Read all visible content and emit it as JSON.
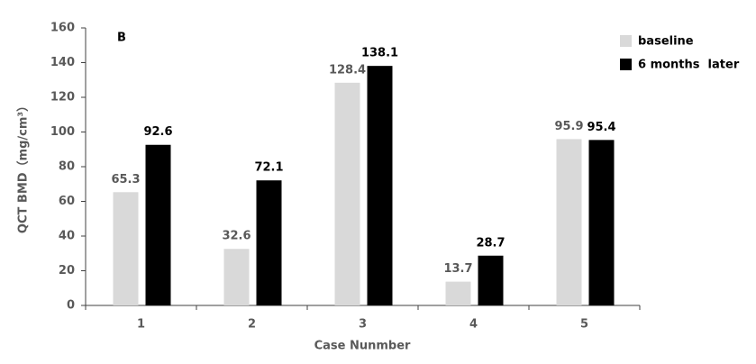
{
  "chart_data": {
    "type": "bar",
    "annotation": "B",
    "xlabel": "Case Nunmber",
    "ylabel": "QCT BMD（mg/cm³）",
    "categories": [
      "1",
      "2",
      "3",
      "4",
      "5"
    ],
    "series": [
      {
        "name": "baseline",
        "color": "#d9d9d9",
        "label_color": "#595959",
        "values": [
          65.3,
          32.6,
          128.4,
          13.7,
          95.9
        ]
      },
      {
        "name": "6 months  later",
        "color": "#000000",
        "label_color": "#000000",
        "values": [
          92.6,
          72.1,
          138.1,
          28.7,
          95.4
        ]
      }
    ],
    "ylim": [
      0,
      160
    ],
    "yticks": [
      0,
      20,
      40,
      60,
      80,
      100,
      120,
      140,
      160
    ],
    "grid": false,
    "legend": "top-right"
  }
}
